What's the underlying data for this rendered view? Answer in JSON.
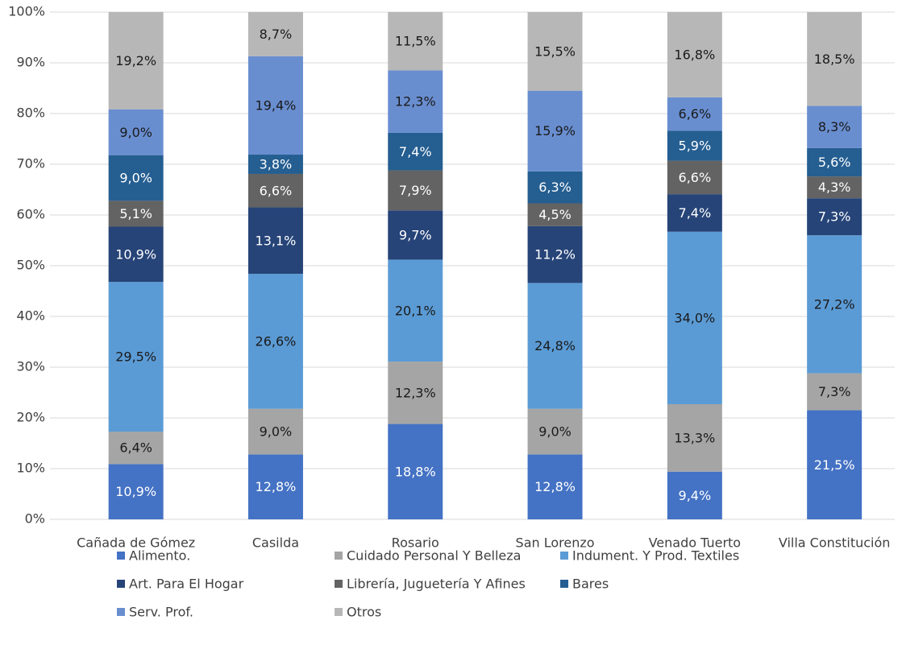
{
  "chart_data": {
    "type": "stacked_bar",
    "categories": [
      "Cañada de Gómez",
      "Casilda",
      "Rosario",
      "San Lorenzo",
      "Venado Tuerto",
      "Villa Constitución"
    ],
    "series": [
      {
        "name": "Alimento.",
        "color": "#4472c4",
        "values": [
          10.9,
          12.8,
          18.8,
          12.8,
          9.4,
          21.5
        ],
        "value_labels": [
          "10,9%",
          "12,8%",
          "18,8%",
          "12,8%",
          "9,4%",
          "21,5%"
        ]
      },
      {
        "name": "Cuidado Personal Y Belleza",
        "color": "#a5a5a5",
        "values": [
          6.4,
          9.0,
          12.3,
          9.0,
          13.3,
          7.3
        ],
        "value_labels": [
          "6,4%",
          "9,0%",
          "12,3%",
          "9,0%",
          "13,3%",
          "7,3%"
        ]
      },
      {
        "name": "Indument. Y Prod. Textiles",
        "color": "#5b9bd5",
        "values": [
          29.5,
          26.6,
          20.1,
          24.8,
          34.0,
          27.2
        ],
        "value_labels": [
          "29,5%",
          "26,6%",
          "20,1%",
          "24,8%",
          "34,0%",
          "27,2%"
        ]
      },
      {
        "name": "Art. Para El Hogar",
        "color": "#264478",
        "values": [
          10.9,
          13.1,
          9.7,
          11.2,
          7.4,
          7.3
        ],
        "value_labels": [
          "10,9%",
          "13,1%",
          "9,7%",
          "11,2%",
          "7,4%",
          "7,3%"
        ]
      },
      {
        "name": "Librería, Juguetería Y Afines",
        "color": "#636363",
        "values": [
          5.1,
          6.6,
          7.9,
          4.5,
          6.6,
          4.3
        ],
        "value_labels": [
          "5,1%",
          "6,6%",
          "7,9%",
          "4,5%",
          "6,6%",
          "4,3%"
        ]
      },
      {
        "name": "Bares",
        "color": "#255e91",
        "values": [
          9.0,
          3.8,
          7.4,
          6.3,
          5.9,
          5.6
        ],
        "value_labels": [
          "9,0%",
          "3,8%",
          "7,4%",
          "6,3%",
          "5,9%",
          "5,6%"
        ]
      },
      {
        "name": "Serv. Prof.",
        "color": "#698ed0",
        "values": [
          9.0,
          19.4,
          12.3,
          15.9,
          6.6,
          8.3
        ],
        "value_labels": [
          "9,0%",
          "19,4%",
          "12,3%",
          "15,9%",
          "6,6%",
          "8,3%"
        ]
      },
      {
        "name": "Otros",
        "color": "#b7b7b7",
        "values": [
          19.2,
          8.7,
          11.5,
          15.5,
          16.8,
          18.5
        ],
        "value_labels": [
          "19,2%",
          "8,7%",
          "11,5%",
          "15,5%",
          "16,8%",
          "18,5%"
        ]
      }
    ],
    "ylim": [
      0,
      100
    ],
    "yticks": [
      {
        "value": 0,
        "label": "0%"
      },
      {
        "value": 10,
        "label": "10%"
      },
      {
        "value": 20,
        "label": "20%"
      },
      {
        "value": 30,
        "label": "30%"
      },
      {
        "value": 40,
        "label": "40%"
      },
      {
        "value": 50,
        "label": "50%"
      },
      {
        "value": 60,
        "label": "60%"
      },
      {
        "value": 70,
        "label": "70%"
      },
      {
        "value": 80,
        "label": "80%"
      },
      {
        "value": 90,
        "label": "90%"
      },
      {
        "value": 100,
        "label": "100%"
      }
    ],
    "grid": true,
    "legend": "bottom"
  }
}
